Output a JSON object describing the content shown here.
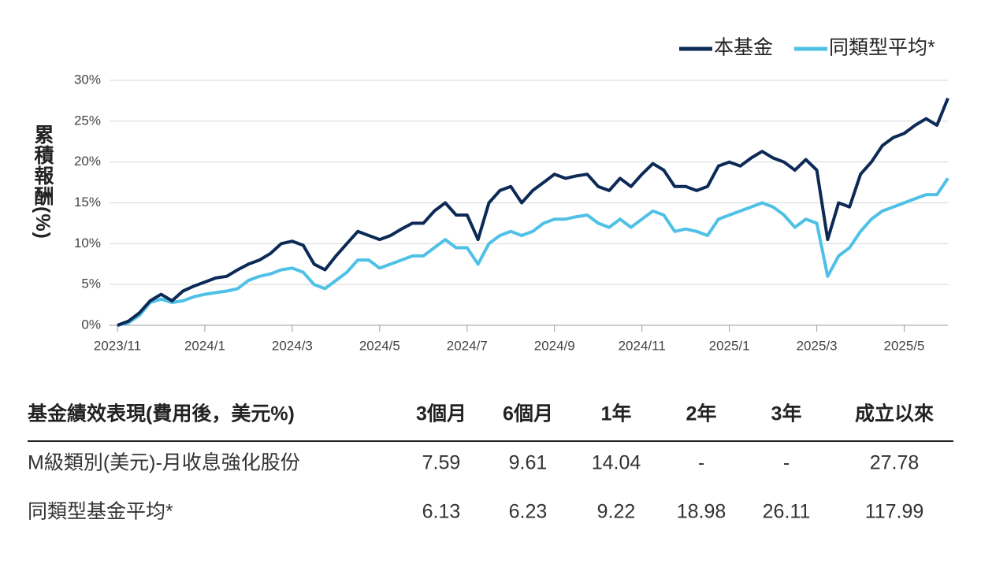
{
  "chart_data": {
    "type": "line",
    "y_label": "累積報酬(%)",
    "categories": [
      "2023/11",
      null,
      null,
      null,
      null,
      null,
      null,
      null,
      "2024/1",
      null,
      null,
      null,
      null,
      null,
      null,
      null,
      "2024/3",
      null,
      null,
      null,
      null,
      null,
      null,
      null,
      "2024/5",
      null,
      null,
      null,
      null,
      null,
      null,
      null,
      "2024/7",
      null,
      null,
      null,
      null,
      null,
      null,
      null,
      "2024/9",
      null,
      null,
      null,
      null,
      null,
      null,
      null,
      "2024/11",
      null,
      null,
      null,
      null,
      null,
      null,
      null,
      "2025/1",
      null,
      null,
      null,
      null,
      null,
      null,
      null,
      "2025/3",
      null,
      null,
      null,
      null,
      null,
      null,
      null,
      "2025/5",
      null,
      null,
      null,
      null
    ],
    "series": [
      {
        "name": "本基金",
        "color": "#0c2a56",
        "values": [
          0,
          0.5,
          1.5,
          3.0,
          3.8,
          3.0,
          4.2,
          4.8,
          5.3,
          5.8,
          6.0,
          6.8,
          7.5,
          8.0,
          8.8,
          10.0,
          10.3,
          9.8,
          7.5,
          6.8,
          8.5,
          10.0,
          11.5,
          11.0,
          10.5,
          11.0,
          11.8,
          12.5,
          12.5,
          14.0,
          15.0,
          13.5,
          13.5,
          10.5,
          15.0,
          16.5,
          17.0,
          15.0,
          16.5,
          17.5,
          18.5,
          18.0,
          18.3,
          18.5,
          17.0,
          16.5,
          18.0,
          17.0,
          18.5,
          19.8,
          19.0,
          17.0,
          17.0,
          16.5,
          17.0,
          19.5,
          20.0,
          19.5,
          20.5,
          21.3,
          20.5,
          20.0,
          19.0,
          20.3,
          19.0,
          10.5,
          15.0,
          14.5,
          18.5,
          20.0,
          22.0,
          23.0,
          23.5,
          24.5,
          25.3,
          24.5,
          27.8
        ]
      },
      {
        "name": "同類型平均*",
        "color": "#4fc0e6",
        "values": [
          0,
          0.3,
          1.2,
          2.8,
          3.2,
          2.8,
          3.0,
          3.5,
          3.8,
          4.0,
          4.2,
          4.5,
          5.5,
          6.0,
          6.3,
          6.8,
          7.0,
          6.5,
          5.0,
          4.5,
          5.5,
          6.5,
          8.0,
          8.0,
          7.0,
          7.5,
          8.0,
          8.5,
          8.5,
          9.5,
          10.5,
          9.5,
          9.5,
          7.5,
          10.0,
          11.0,
          11.5,
          11.0,
          11.5,
          12.5,
          13.0,
          13.0,
          13.3,
          13.5,
          12.5,
          12.0,
          13.0,
          12.0,
          13.0,
          14.0,
          13.5,
          11.5,
          11.8,
          11.5,
          11.0,
          13.0,
          13.5,
          14.0,
          14.5,
          15.0,
          14.5,
          13.5,
          12.0,
          13.0,
          12.5,
          6.0,
          8.5,
          9.5,
          11.5,
          13.0,
          14.0,
          14.5,
          15.0,
          15.5,
          16.0,
          16.0,
          18.0
        ]
      }
    ],
    "ylim": [
      0,
      30
    ],
    "yticks": [
      {
        "value": 0,
        "label": "0%"
      },
      {
        "value": 5,
        "label": "5%"
      },
      {
        "value": 10,
        "label": "10%"
      },
      {
        "value": 15,
        "label": "15%"
      },
      {
        "value": 20,
        "label": "20%"
      },
      {
        "value": 25,
        "label": "25%"
      },
      {
        "value": 30,
        "label": "30%"
      }
    ],
    "grid": true,
    "legend": "top-right"
  },
  "table": {
    "header": [
      "基金績效表現(費用後，美元%)",
      "3個月",
      "6個月",
      "1年",
      "2年",
      "3年",
      "成立以來"
    ],
    "rows": [
      [
        "M級類別(美元)-月收息強化股份",
        "7.59",
        "9.61",
        "14.04",
        "-",
        "-",
        "27.78"
      ],
      [
        "同類型基金平均*",
        "6.13",
        "6.23",
        "9.22",
        "18.98",
        "26.11",
        "117.99"
      ]
    ]
  }
}
